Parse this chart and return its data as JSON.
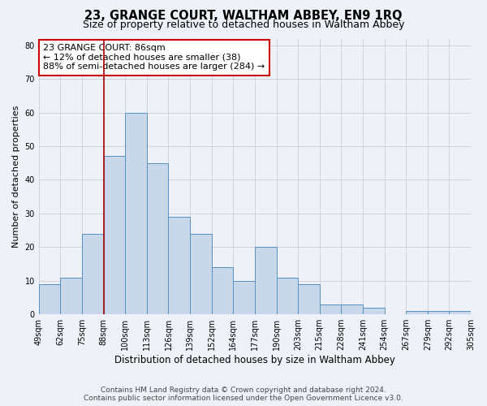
{
  "title": "23, GRANGE COURT, WALTHAM ABBEY, EN9 1RQ",
  "subtitle": "Size of property relative to detached houses in Waltham Abbey",
  "xlabel": "Distribution of detached houses by size in Waltham Abbey",
  "ylabel": "Number of detached properties",
  "bar_values": [
    9,
    11,
    24,
    47,
    60,
    45,
    29,
    24,
    14,
    10,
    20,
    11,
    9,
    3,
    3,
    2,
    0,
    1,
    1,
    1
  ],
  "x_labels": [
    "49sqm",
    "62sqm",
    "75sqm",
    "88sqm",
    "100sqm",
    "113sqm",
    "126sqm",
    "139sqm",
    "152sqm",
    "164sqm",
    "177sqm",
    "190sqm",
    "203sqm",
    "215sqm",
    "228sqm",
    "241sqm",
    "254sqm",
    "267sqm",
    "279sqm",
    "292sqm",
    "305sqm"
  ],
  "bar_color": "#c8d8ea",
  "bar_edgecolor": "#5590c0",
  "bar_linewidth": 0.7,
  "grid_color": "#c8d0dc",
  "background_color": "#eef2f8",
  "red_line_index": 3,
  "red_line_color": "#aa0000",
  "annotation_text": "23 GRANGE COURT: 86sqm\n← 12% of detached houses are smaller (38)\n88% of semi-detached houses are larger (284) →",
  "annotation_box_edgecolor": "#cc0000",
  "annotation_box_facecolor": "#ffffff",
  "ylim": [
    0,
    82
  ],
  "yticks": [
    0,
    10,
    20,
    30,
    40,
    50,
    60,
    70,
    80
  ],
  "footer_line1": "Contains HM Land Registry data © Crown copyright and database right 2024.",
  "footer_line2": "Contains public sector information licensed under the Open Government Licence v3.0.",
  "title_fontsize": 10.5,
  "subtitle_fontsize": 9,
  "ylabel_fontsize": 8,
  "xlabel_fontsize": 8.5,
  "tick_fontsize": 7,
  "annotation_fontsize": 8,
  "footer_fontsize": 6.5
}
